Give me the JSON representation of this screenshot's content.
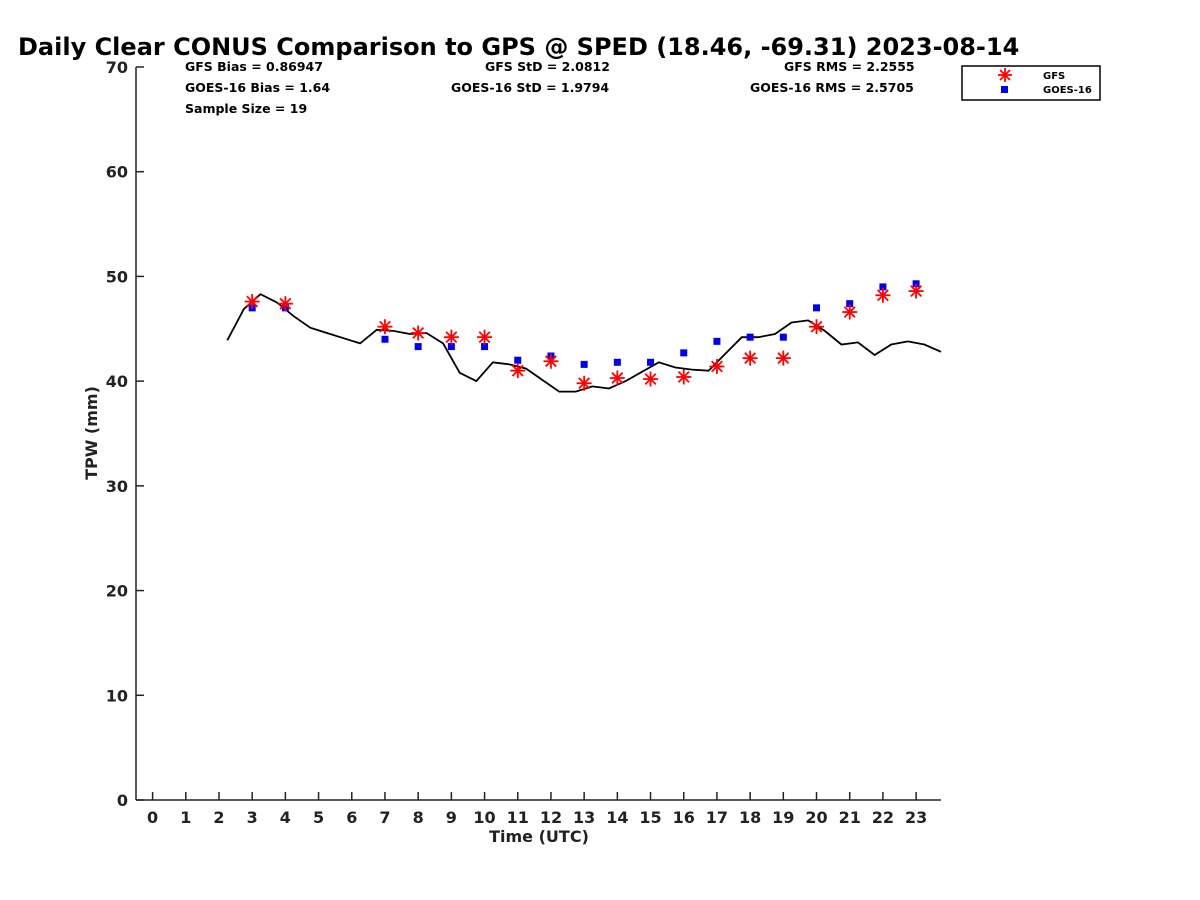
{
  "chart_data": {
    "type": "scatter",
    "title": "Daily Clear CONUS Comparison to GPS @ SPED (18.46, -69.31) 2023-08-14",
    "xlabel": "Time (UTC)",
    "ylabel": "TPW (mm)",
    "xlim": [
      -0.5,
      23.75
    ],
    "ylim": [
      0,
      70
    ],
    "xticks": [
      0,
      1,
      2,
      3,
      4,
      5,
      6,
      7,
      8,
      9,
      10,
      11,
      12,
      13,
      14,
      15,
      16,
      17,
      18,
      19,
      20,
      21,
      22,
      23
    ],
    "yticks": [
      0,
      10,
      20,
      30,
      40,
      50,
      60,
      70
    ],
    "grid": false,
    "legend_position": "top-right",
    "stats": {
      "gfs_bias": "GFS Bias = 0.86947",
      "goes_bias": "GOES-16 Bias = 1.64",
      "sample_size": "Sample Size = 19",
      "gfs_std": "GFS StD = 2.0812",
      "goes_std": "GOES-16 StD = 1.9794",
      "gfs_rms": "GFS RMS = 2.2555",
      "goes_rms": "GOES-16 RMS = 2.5705"
    },
    "series": [
      {
        "name": "GFS",
        "marker": "asterisk",
        "color": "#ff0000",
        "x": [
          3,
          4,
          7,
          8,
          9,
          10,
          11,
          12,
          13,
          14,
          15,
          16,
          17,
          18,
          19,
          20,
          21,
          22,
          23
        ],
        "y": [
          47.6,
          47.4,
          45.2,
          44.6,
          44.2,
          44.2,
          41.0,
          41.9,
          39.8,
          40.3,
          40.2,
          40.4,
          41.4,
          42.2,
          42.2,
          45.2,
          46.6,
          48.2,
          48.6
        ]
      },
      {
        "name": "GOES-16",
        "marker": "square",
        "color": "#0000ee",
        "x": [
          3,
          4,
          7,
          8,
          9,
          10,
          11,
          12,
          13,
          14,
          15,
          16,
          17,
          18,
          19,
          20,
          21,
          22,
          23
        ],
        "y": [
          47.0,
          47.0,
          44.0,
          43.3,
          43.3,
          43.3,
          42.0,
          42.4,
          41.6,
          41.8,
          41.8,
          42.7,
          43.8,
          44.2,
          44.2,
          47.0,
          47.4,
          49.0,
          49.3
        ]
      },
      {
        "name": "GPS",
        "marker": "line",
        "color": "#000000",
        "x": [
          2.25,
          2.75,
          3.25,
          3.75,
          4.25,
          4.75,
          5.25,
          5.75,
          6.25,
          6.75,
          7.25,
          7.75,
          8.25,
          8.75,
          9.25,
          9.75,
          10.25,
          10.75,
          11.25,
          11.75,
          12.25,
          12.75,
          13.25,
          13.75,
          14.25,
          14.75,
          15.25,
          15.75,
          16.25,
          16.75,
          17.25,
          17.75,
          18.25,
          18.75,
          19.25,
          19.75,
          20.25,
          20.75,
          21.25,
          21.75,
          22.25,
          22.75,
          23.25,
          23.75
        ],
        "y": [
          43.9,
          46.9,
          48.3,
          47.5,
          46.2,
          45.1,
          44.6,
          44.1,
          43.6,
          44.9,
          44.8,
          44.5,
          44.6,
          43.6,
          40.8,
          40.0,
          41.8,
          41.6,
          41.2,
          40.1,
          39.0,
          39.0,
          39.5,
          39.3,
          40.0,
          40.9,
          41.8,
          41.3,
          41.1,
          41.0,
          42.6,
          44.2,
          44.2,
          44.5,
          45.6,
          45.8,
          44.8,
          43.5,
          43.7,
          42.5,
          43.5,
          43.8,
          43.5,
          42.8
        ]
      }
    ]
  }
}
